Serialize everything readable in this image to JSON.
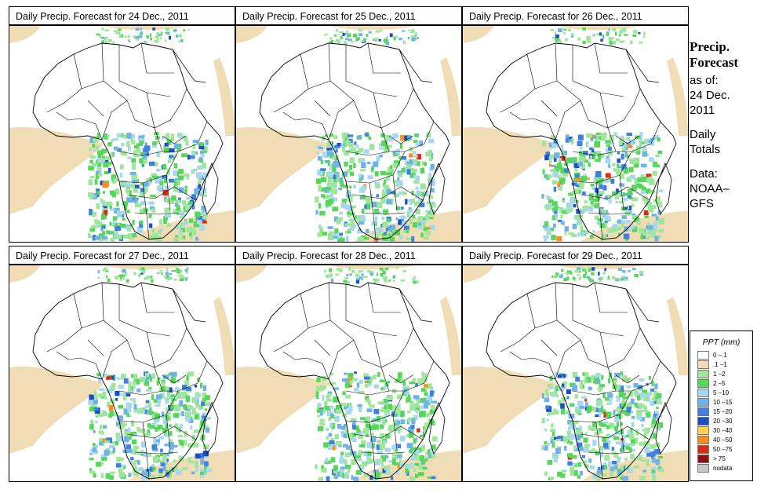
{
  "panels": [
    {
      "title": "Daily Precip. Forecast for  24 Dec., 2011"
    },
    {
      "title": "Daily Precip. Forecast for  25 Dec., 2011"
    },
    {
      "title": "Daily Precip. Forecast for  26 Dec., 2011"
    },
    {
      "title": "Daily Precip. Forecast for  27 Dec., 2011"
    },
    {
      "title": "Daily Precip. Forecast for  28 Dec., 2011"
    },
    {
      "title": "Daily Precip. Forecast for  29 Dec., 2011"
    }
  ],
  "side": {
    "heading1": "Precip.",
    "heading2": "Forecast",
    "asof": "as of:",
    "date1": "24 Dec.",
    "date2": "2011",
    "daily1": "Daily",
    "daily2": "Totals",
    "data1": "Data:",
    "data2": "NOAA–",
    "data3": "GFS"
  },
  "legend": {
    "title": "PPT (mm)",
    "items": [
      {
        "label": "0 –.1",
        "color": "#ffffff"
      },
      {
        "label": ".1 –1",
        "color": "#f0ddb5"
      },
      {
        "label": "1 –2",
        "color": "#9ee69a"
      },
      {
        "label": "2 –5",
        "color": "#55d75a"
      },
      {
        "label": "5 –10",
        "color": "#a8d8f0"
      },
      {
        "label": "10 –15",
        "color": "#6fb2e6"
      },
      {
        "label": "15 –20",
        "color": "#3f7fe0"
      },
      {
        "label": "20 –30",
        "color": "#1c4fc4"
      },
      {
        "label": "30 –40",
        "color": "#ffd34a"
      },
      {
        "label": "40 –50",
        "color": "#ff8c1a"
      },
      {
        "label": "50 –75",
        "color": "#e02a10"
      },
      {
        "label": "> 75",
        "color": "#8b1010"
      },
      {
        "label": "nodata",
        "color": "#c8c8c8"
      }
    ]
  }
}
